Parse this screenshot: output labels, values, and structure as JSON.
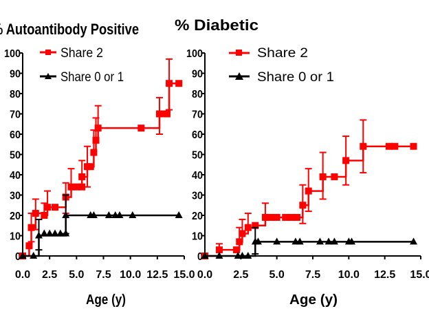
{
  "chart_data": [
    {
      "type": "line",
      "title": "% Autoantibody Positive",
      "xlabel": "Age (y)",
      "ylabel": "",
      "xlim": [
        0,
        15
      ],
      "ylim": [
        0,
        100
      ],
      "x_ticks": [
        "0.0",
        "2.5",
        "5.0",
        "7.5",
        "10.0",
        "12.5",
        "15.0"
      ],
      "y_ticks": [
        "0",
        "10",
        "20",
        "30",
        "40",
        "50",
        "60",
        "70",
        "80",
        "90",
        "100"
      ],
      "legend_position": "top-left",
      "series": [
        {
          "name": "Share 2",
          "color": "#ff0000",
          "marker": "square",
          "steps": [
            [
              0,
              0
            ],
            [
              0.6,
              5
            ],
            [
              0.8,
              14
            ],
            [
              1.2,
              21
            ],
            [
              2,
              20
            ],
            [
              2.3,
              24
            ],
            [
              3,
              24
            ],
            [
              4,
              29
            ],
            [
              4.5,
              34
            ],
            [
              5.5,
              39
            ],
            [
              6,
              44
            ],
            [
              6.6,
              51
            ],
            [
              6.8,
              57
            ],
            [
              7,
              63
            ],
            [
              11,
              63
            ],
            [
              12.7,
              70
            ],
            [
              13.6,
              85
            ],
            [
              14.5,
              85
            ]
          ],
          "points": [
            [
              0,
              0
            ],
            [
              0.6,
              5
            ],
            [
              0.8,
              14
            ],
            [
              1.2,
              21
            ],
            [
              2,
              20
            ],
            [
              2.3,
              24
            ],
            [
              3,
              24
            ],
            [
              4,
              29
            ],
            [
              4.5,
              34
            ],
            [
              5,
              34
            ],
            [
              5.5,
              34
            ],
            [
              5.5,
              39
            ],
            [
              6,
              44
            ],
            [
              6.3,
              44
            ],
            [
              6.6,
              51
            ],
            [
              6.8,
              57
            ],
            [
              7,
              63
            ],
            [
              11,
              63
            ],
            [
              12.7,
              70
            ],
            [
              13,
              70
            ],
            [
              13.4,
              70
            ],
            [
              13.6,
              85
            ],
            [
              14.5,
              85
            ]
          ],
          "error_bars": [
            [
              0.8,
              14,
              21
            ],
            [
              1.2,
              21,
              28
            ],
            [
              2,
              20,
              26
            ],
            [
              2.3,
              24,
              32
            ],
            [
              4,
              29,
              36
            ],
            [
              4.5,
              34,
              43
            ],
            [
              5.5,
              39,
              47
            ],
            [
              6,
              44,
              54
            ],
            [
              6.6,
              51,
              62
            ],
            [
              6.8,
              57,
              68
            ],
            [
              7,
              63,
              74
            ],
            [
              12.7,
              70,
              78
            ],
            [
              13.6,
              85,
              97
            ]
          ],
          "error_bars_lower": [
            [
              0.8,
              14,
              7
            ],
            [
              1.2,
              21,
              13
            ],
            [
              4,
              29,
              21
            ],
            [
              6,
              44,
              34
            ],
            [
              12.7,
              70,
              60
            ],
            [
              13.6,
              85,
              72
            ]
          ]
        },
        {
          "name": "Share 0 or 1",
          "color": "#000000",
          "marker": "triangle",
          "steps": [
            [
              0,
              0
            ],
            [
              1,
              0
            ],
            [
              1.5,
              10
            ],
            [
              4,
              10
            ],
            [
              4,
              20
            ],
            [
              14.5,
              20
            ]
          ],
          "points": [
            [
              0,
              0
            ],
            [
              1,
              0
            ],
            [
              1.5,
              10
            ],
            [
              2,
              11
            ],
            [
              2.5,
              11
            ],
            [
              3,
              11
            ],
            [
              3.5,
              11
            ],
            [
              4,
              11
            ],
            [
              4,
              20
            ],
            [
              6.3,
              20
            ],
            [
              6.6,
              20
            ],
            [
              8,
              20
            ],
            [
              8.6,
              20
            ],
            [
              9,
              20
            ],
            [
              10.2,
              20
            ],
            [
              14.5,
              20
            ]
          ],
          "error_bars": [
            [
              1.5,
              10,
              18
            ],
            [
              4,
              20,
              30
            ]
          ],
          "error_bars_lower": [
            [
              1.5,
              10,
              3
            ],
            [
              4,
              20,
              11
            ]
          ]
        }
      ]
    },
    {
      "type": "line",
      "title": "% Diabetic",
      "xlabel": "Age (y)",
      "ylabel": "",
      "xlim": [
        0,
        15
      ],
      "ylim": [
        0,
        100
      ],
      "x_ticks": [
        "0.0",
        "2.5",
        "5.0",
        "7.5",
        "10.0",
        "12.5",
        "15.0"
      ],
      "y_ticks": [
        "0",
        "10",
        "20",
        "30",
        "40",
        "50",
        "60",
        "70",
        "80",
        "90",
        "100"
      ],
      "legend_position": "top-left",
      "series": [
        {
          "name": "Share 2",
          "color": "#ff0000",
          "marker": "square",
          "steps": [
            [
              0,
              0
            ],
            [
              1,
              3
            ],
            [
              2.2,
              3
            ],
            [
              2.4,
              7
            ],
            [
              2.6,
              11
            ],
            [
              3,
              14
            ],
            [
              3.5,
              15
            ],
            [
              4.2,
              19
            ],
            [
              6.8,
              25
            ],
            [
              7.2,
              32
            ],
            [
              8.2,
              39
            ],
            [
              9,
              39
            ],
            [
              9.8,
              47
            ],
            [
              11,
              54
            ],
            [
              14.5,
              54
            ]
          ],
          "points": [
            [
              0,
              0
            ],
            [
              1,
              3
            ],
            [
              2.2,
              3
            ],
            [
              2.4,
              7
            ],
            [
              2.6,
              11
            ],
            [
              3,
              14
            ],
            [
              3.5,
              15
            ],
            [
              4.2,
              19
            ],
            [
              4.6,
              19
            ],
            [
              5,
              19
            ],
            [
              5.6,
              19
            ],
            [
              6,
              19
            ],
            [
              6.4,
              19
            ],
            [
              6.8,
              25
            ],
            [
              7.2,
              32
            ],
            [
              8.2,
              39
            ],
            [
              9,
              39
            ],
            [
              9.8,
              47
            ],
            [
              11,
              54
            ],
            [
              12.8,
              54
            ],
            [
              13.2,
              54
            ],
            [
              14.5,
              54
            ]
          ],
          "error_bars": [
            [
              1,
              3,
              6
            ],
            [
              2.4,
              7,
              14
            ],
            [
              2.6,
              11,
              18
            ],
            [
              3,
              14,
              21
            ],
            [
              4.2,
              19,
              26
            ],
            [
              6.8,
              25,
              35
            ],
            [
              7.2,
              32,
              43
            ],
            [
              8.2,
              39,
              51
            ],
            [
              9.8,
              47,
              59
            ],
            [
              11,
              54,
              67
            ]
          ],
          "error_bars_lower": [
            [
              6.8,
              25,
              16
            ],
            [
              7.2,
              32,
              22
            ],
            [
              8.2,
              39,
              28
            ],
            [
              9.8,
              47,
              35
            ],
            [
              11,
              54,
              41
            ]
          ]
        },
        {
          "name": "Share 0 or 1",
          "color": "#000000",
          "marker": "triangle",
          "steps": [
            [
              0,
              0
            ],
            [
              3.5,
              0
            ],
            [
              3.5,
              7
            ],
            [
              14.5,
              7
            ]
          ],
          "points": [
            [
              0,
              0
            ],
            [
              1,
              0
            ],
            [
              2.3,
              0
            ],
            [
              2.6,
              0
            ],
            [
              3,
              0
            ],
            [
              3.5,
              7
            ],
            [
              3.7,
              7
            ],
            [
              5,
              7
            ],
            [
              6.3,
              7
            ],
            [
              6.6,
              7
            ],
            [
              8,
              7
            ],
            [
              8.6,
              7
            ],
            [
              9,
              7
            ],
            [
              10,
              7
            ],
            [
              10.2,
              7
            ],
            [
              14.5,
              7
            ]
          ],
          "error_bars": [
            [
              3.5,
              7,
              14
            ]
          ],
          "error_bars_lower": [
            [
              3.5,
              7,
              1
            ]
          ]
        }
      ]
    }
  ]
}
